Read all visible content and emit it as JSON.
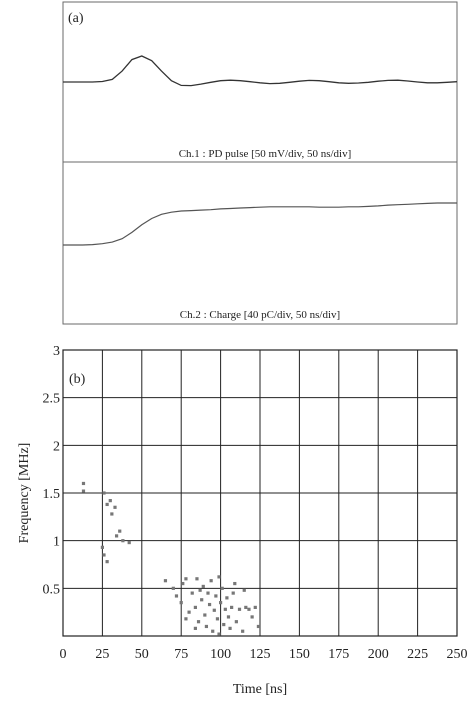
{
  "chart_data": [
    {
      "type": "line",
      "panel_label": "(a)",
      "series": [
        {
          "caption": "Ch.1 : PD pulse [50 mV/div, 50 ns/div]",
          "x": [
            0,
            10,
            20,
            30,
            40,
            50,
            60,
            70,
            80,
            90,
            100,
            110,
            120,
            130,
            140,
            150,
            160,
            170,
            180,
            190,
            200,
            210,
            220,
            230,
            240,
            250,
            260,
            270,
            280,
            290,
            300,
            310,
            320,
            330,
            340,
            350,
            360,
            370,
            380,
            390,
            400
          ],
          "values": [
            0.0,
            0.0,
            0.0,
            0.0,
            0.02,
            0.1,
            0.42,
            0.86,
            1.0,
            0.82,
            0.42,
            0.05,
            -0.13,
            -0.14,
            -0.08,
            -0.01,
            0.05,
            0.07,
            0.05,
            0.01,
            -0.03,
            -0.06,
            -0.05,
            -0.01,
            0.03,
            0.06,
            0.05,
            0.01,
            -0.03,
            -0.05,
            -0.04,
            -0.01,
            0.03,
            0.06,
            0.07,
            0.04,
            0.0,
            -0.03,
            -0.03,
            -0.01,
            0.01
          ]
        },
        {
          "caption": "Ch.2 : Charge [40 pC/div, 50 ns/div]",
          "x": [
            0,
            10,
            20,
            30,
            40,
            50,
            60,
            70,
            80,
            90,
            100,
            110,
            120,
            130,
            140,
            150,
            160,
            170,
            180,
            190,
            200,
            210,
            220,
            230,
            240,
            250,
            260,
            270,
            280,
            290,
            300,
            310,
            320,
            330,
            340,
            350,
            360,
            370,
            380,
            390,
            400
          ],
          "values": [
            0.0,
            0.0,
            0.0,
            0.01,
            0.03,
            0.07,
            0.15,
            0.3,
            0.48,
            0.63,
            0.73,
            0.78,
            0.81,
            0.82,
            0.83,
            0.84,
            0.86,
            0.87,
            0.88,
            0.89,
            0.9,
            0.91,
            0.91,
            0.91,
            0.91,
            0.91,
            0.9,
            0.9,
            0.9,
            0.91,
            0.91,
            0.92,
            0.93,
            0.95,
            0.96,
            0.97,
            0.98,
            0.99,
            1.0,
            1.0,
            1.0
          ]
        }
      ]
    },
    {
      "type": "scatter",
      "panel_label": "(b)",
      "xlabel": "Time [ns]",
      "ylabel": "Frequency [MHz]",
      "xlim": [
        0,
        250
      ],
      "ylim": [
        0,
        3
      ],
      "x_ticks": [
        "0",
        "25",
        "50",
        "75",
        "100",
        "125",
        "150",
        "175",
        "200",
        "225",
        "250"
      ],
      "y_ticks": [
        "0.5",
        "1",
        "1.5",
        "2",
        "2.5",
        "3"
      ],
      "grid": true,
      "points": [
        {
          "x": 13,
          "y": 1.6
        },
        {
          "x": 13,
          "y": 1.52
        },
        {
          "x": 26,
          "y": 1.5
        },
        {
          "x": 28,
          "y": 1.38
        },
        {
          "x": 30,
          "y": 1.42
        },
        {
          "x": 31,
          "y": 1.28
        },
        {
          "x": 33,
          "y": 1.35
        },
        {
          "x": 36,
          "y": 1.1
        },
        {
          "x": 34,
          "y": 1.05
        },
        {
          "x": 38,
          "y": 1.0
        },
        {
          "x": 25,
          "y": 0.93
        },
        {
          "x": 26,
          "y": 0.85
        },
        {
          "x": 28,
          "y": 0.78
        },
        {
          "x": 42,
          "y": 0.98
        },
        {
          "x": 65,
          "y": 0.58
        },
        {
          "x": 70,
          "y": 0.5
        },
        {
          "x": 72,
          "y": 0.42
        },
        {
          "x": 75,
          "y": 0.35
        },
        {
          "x": 76,
          "y": 0.55
        },
        {
          "x": 78,
          "y": 0.6
        },
        {
          "x": 80,
          "y": 0.25
        },
        {
          "x": 82,
          "y": 0.45
        },
        {
          "x": 84,
          "y": 0.3
        },
        {
          "x": 85,
          "y": 0.6
        },
        {
          "x": 86,
          "y": 0.15
        },
        {
          "x": 88,
          "y": 0.38
        },
        {
          "x": 89,
          "y": 0.52
        },
        {
          "x": 90,
          "y": 0.22
        },
        {
          "x": 91,
          "y": 0.1
        },
        {
          "x": 92,
          "y": 0.45
        },
        {
          "x": 93,
          "y": 0.33
        },
        {
          "x": 94,
          "y": 0.58
        },
        {
          "x": 95,
          "y": 0.05
        },
        {
          "x": 96,
          "y": 0.27
        },
        {
          "x": 97,
          "y": 0.42
        },
        {
          "x": 98,
          "y": 0.18
        },
        {
          "x": 99,
          "y": 0.62
        },
        {
          "x": 100,
          "y": 0.35
        },
        {
          "x": 101,
          "y": 0.5
        },
        {
          "x": 102,
          "y": 0.12
        },
        {
          "x": 103,
          "y": 0.28
        },
        {
          "x": 104,
          "y": 0.4
        },
        {
          "x": 105,
          "y": 0.2
        },
        {
          "x": 106,
          "y": 0.08
        },
        {
          "x": 107,
          "y": 0.3
        },
        {
          "x": 108,
          "y": 0.45
        },
        {
          "x": 110,
          "y": 0.15
        },
        {
          "x": 112,
          "y": 0.28
        },
        {
          "x": 114,
          "y": 0.05
        },
        {
          "x": 116,
          "y": 0.3
        },
        {
          "x": 118,
          "y": 0.28
        },
        {
          "x": 120,
          "y": 0.2
        },
        {
          "x": 122,
          "y": 0.3
        },
        {
          "x": 124,
          "y": 0.1
        },
        {
          "x": 115,
          "y": 0.48
        },
        {
          "x": 78,
          "y": 0.18
        },
        {
          "x": 84,
          "y": 0.08
        },
        {
          "x": 109,
          "y": 0.55
        },
        {
          "x": 87,
          "y": 0.48
        },
        {
          "x": 99,
          "y": 0.02
        }
      ]
    }
  ]
}
